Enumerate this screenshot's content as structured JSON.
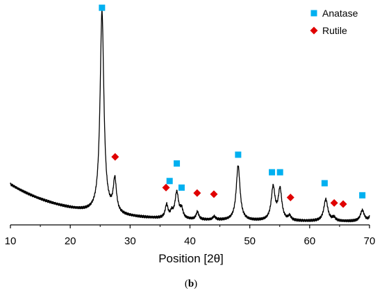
{
  "chart_data": {
    "type": "line",
    "xlabel": "Position [2θ]",
    "ylabel": "",
    "xlim": [
      10,
      70
    ],
    "ylim": [
      0,
      100
    ],
    "x_ticks": [
      10,
      20,
      30,
      40,
      50,
      60,
      70
    ],
    "y_axis_visible": false,
    "grid": false,
    "legend_position": "top-right",
    "caption_letter": "b",
    "legend": [
      {
        "label": "Anatase",
        "marker": "square",
        "color": "#00b0f0"
      },
      {
        "label": "Rutile",
        "marker": "diamond",
        "color": "#e00000"
      }
    ],
    "series": [
      {
        "color": "#000000",
        "background": {
          "start_level": 18.5,
          "end_level": 1.5,
          "decay": 6
        },
        "peaks": [
          {
            "x": 25.3,
            "height": 92,
            "width": 0.38
          },
          {
            "x": 27.45,
            "height": 15,
            "width": 0.32
          },
          {
            "x": 36.1,
            "height": 6,
            "width": 0.28
          },
          {
            "x": 36.95,
            "height": 2.5,
            "width": 0.25
          },
          {
            "x": 37.8,
            "height": 12,
            "width": 0.36
          },
          {
            "x": 38.6,
            "height": 4,
            "width": 0.28
          },
          {
            "x": 41.25,
            "height": 3.5,
            "width": 0.26
          },
          {
            "x": 44.05,
            "height": 1.5,
            "width": 0.28
          },
          {
            "x": 48.05,
            "height": 25,
            "width": 0.38
          },
          {
            "x": 53.9,
            "height": 15,
            "width": 0.38
          },
          {
            "x": 55.05,
            "height": 14,
            "width": 0.36
          },
          {
            "x": 56.65,
            "height": 2,
            "width": 0.28
          },
          {
            "x": 62.7,
            "height": 10,
            "width": 0.4
          },
          {
            "x": 64.05,
            "height": 1.5,
            "width": 0.3
          },
          {
            "x": 68.8,
            "height": 5,
            "width": 0.38
          },
          {
            "x": 70.3,
            "height": 3,
            "width": 0.35
          }
        ]
      }
    ],
    "markers": [
      {
        "phase": "Anatase",
        "x": 25.3,
        "y": 99
      },
      {
        "phase": "Anatase",
        "x": 36.6,
        "y": 20
      },
      {
        "phase": "Anatase",
        "x": 37.8,
        "y": 28
      },
      {
        "phase": "Anatase",
        "x": 38.6,
        "y": 17
      },
      {
        "phase": "Anatase",
        "x": 48.05,
        "y": 32
      },
      {
        "phase": "Anatase",
        "x": 53.7,
        "y": 24
      },
      {
        "phase": "Anatase",
        "x": 55.05,
        "y": 24
      },
      {
        "phase": "Anatase",
        "x": 62.5,
        "y": 19
      },
      {
        "phase": "Anatase",
        "x": 68.8,
        "y": 13.5
      },
      {
        "phase": "Rutile",
        "x": 27.5,
        "y": 31
      },
      {
        "phase": "Rutile",
        "x": 36.0,
        "y": 17
      },
      {
        "phase": "Rutile",
        "x": 41.2,
        "y": 14.5
      },
      {
        "phase": "Rutile",
        "x": 44.0,
        "y": 14
      },
      {
        "phase": "Rutile",
        "x": 56.8,
        "y": 12.5
      },
      {
        "phase": "Rutile",
        "x": 64.1,
        "y": 10
      },
      {
        "phase": "Rutile",
        "x": 65.6,
        "y": 9.5
      }
    ]
  }
}
